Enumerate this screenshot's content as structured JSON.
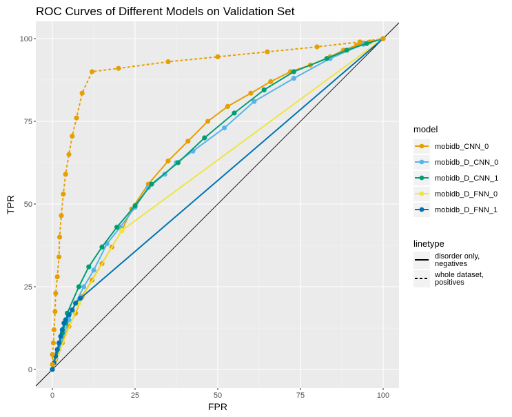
{
  "chart_data": {
    "type": "line",
    "title": "ROC Curves of Different Models on Validation Set",
    "xlabel": "FPR",
    "ylabel": "TPR",
    "xlim": [
      0,
      100
    ],
    "ylim": [
      0,
      100
    ],
    "xticks": [
      0,
      25,
      50,
      75,
      100
    ],
    "yticks": [
      0,
      25,
      50,
      75,
      100
    ],
    "grid": true,
    "legend_placement": "right",
    "reference_line": "diagonal",
    "legend_model": {
      "title": "model",
      "items": [
        "mobidb_CNN_0",
        "mobidb_D_CNN_0",
        "mobidb_D_CNN_1",
        "mobidb_D_FNN_0",
        "mobidb_D_FNN_1"
      ]
    },
    "legend_linetype": {
      "title": "linetype",
      "items": [
        {
          "label_lines": [
            "disorder only,",
            "negatives"
          ],
          "dash": "solid"
        },
        {
          "label_lines": [
            "whole dataset,",
            "positives"
          ],
          "dash": "dashed"
        }
      ]
    },
    "series": [
      {
        "model": "mobidb_CNN_0",
        "linetype": "whole dataset, positives",
        "color": "#E69F00",
        "points": [
          [
            0,
            1.5
          ],
          [
            0,
            4.5
          ],
          [
            0.3,
            8
          ],
          [
            0.5,
            12
          ],
          [
            0.8,
            17.5
          ],
          [
            1,
            23
          ],
          [
            1.5,
            28
          ],
          [
            2,
            34
          ],
          [
            2.2,
            40
          ],
          [
            2.7,
            46.5
          ],
          [
            3.3,
            53
          ],
          [
            4,
            59
          ],
          [
            5,
            65
          ],
          [
            6,
            70.5
          ],
          [
            7.3,
            76
          ],
          [
            9,
            83.5
          ],
          [
            12,
            90
          ],
          [
            20,
            91
          ],
          [
            35,
            93
          ],
          [
            50,
            94.5
          ],
          [
            65,
            96
          ],
          [
            80,
            97.5
          ],
          [
            93,
            99
          ],
          [
            100,
            100
          ]
        ]
      },
      {
        "model": "mobidb_CNN_0",
        "linetype": "disorder only, negatives",
        "color": "#E69F00",
        "points": [
          [
            0,
            0
          ],
          [
            1,
            3
          ],
          [
            3,
            8
          ],
          [
            5,
            13
          ],
          [
            7,
            17
          ],
          [
            9,
            22
          ],
          [
            12,
            27
          ],
          [
            15,
            32
          ],
          [
            18,
            37
          ],
          [
            21,
            42
          ],
          [
            24,
            48.5
          ],
          [
            29,
            56
          ],
          [
            35,
            63
          ],
          [
            41,
            69
          ],
          [
            47,
            75
          ],
          [
            53,
            79.5
          ],
          [
            60,
            83.5
          ],
          [
            66,
            87
          ],
          [
            72,
            90
          ],
          [
            78,
            92
          ],
          [
            84,
            94.5
          ],
          [
            88,
            96.5
          ],
          [
            92,
            98
          ],
          [
            96,
            99
          ],
          [
            100,
            100
          ]
        ]
      },
      {
        "model": "mobidb_D_CNN_0",
        "linetype": "disorder only, negatives",
        "color": "#56B4E9",
        "points": [
          [
            0,
            0
          ],
          [
            2,
            6
          ],
          [
            5,
            15
          ],
          [
            7,
            20
          ],
          [
            9.5,
            25
          ],
          [
            12.5,
            30
          ],
          [
            16.5,
            38
          ],
          [
            20.5,
            43
          ],
          [
            25,
            49
          ],
          [
            29,
            55
          ],
          [
            34,
            59
          ],
          [
            37.5,
            62.5
          ],
          [
            42.5,
            66
          ],
          [
            52,
            73
          ],
          [
            61,
            81
          ],
          [
            73,
            88
          ],
          [
            84,
            94
          ],
          [
            94,
            98.3
          ],
          [
            100,
            100
          ]
        ]
      },
      {
        "model": "mobidb_D_CNN_1",
        "linetype": "disorder only, negatives",
        "color": "#009E73",
        "points": [
          [
            0,
            0
          ],
          [
            1.5,
            5
          ],
          [
            3,
            11
          ],
          [
            4,
            14
          ],
          [
            4.5,
            17
          ],
          [
            8,
            25
          ],
          [
            11,
            31
          ],
          [
            15,
            37
          ],
          [
            19.5,
            43
          ],
          [
            25,
            49.5
          ],
          [
            30,
            56
          ],
          [
            38,
            62.5
          ],
          [
            46,
            70
          ],
          [
            55,
            77.5
          ],
          [
            64,
            84.5
          ],
          [
            73,
            90
          ],
          [
            83,
            94
          ],
          [
            89,
            96.5
          ],
          [
            95,
            98.5
          ],
          [
            100,
            100
          ]
        ]
      },
      {
        "model": "mobidb_D_FNN_0",
        "linetype": "disorder only, negatives",
        "color": "#F0E442",
        "points": [
          [
            0,
            0
          ],
          [
            8,
            20
          ],
          [
            21,
            42
          ],
          [
            100,
            100
          ]
        ]
      },
      {
        "model": "mobidb_D_FNN_1",
        "linetype": "disorder only, negatives",
        "color": "#0072B2",
        "points": [
          [
            0,
            0
          ],
          [
            0.5,
            2
          ],
          [
            1,
            4
          ],
          [
            1.5,
            6
          ],
          [
            2,
            8
          ],
          [
            2.5,
            10
          ],
          [
            3,
            12
          ],
          [
            3.5,
            14
          ],
          [
            4,
            15
          ],
          [
            5,
            16.5
          ],
          [
            6,
            18
          ],
          [
            7,
            20
          ],
          [
            8.5,
            21.5
          ],
          [
            100,
            100
          ]
        ]
      }
    ]
  }
}
